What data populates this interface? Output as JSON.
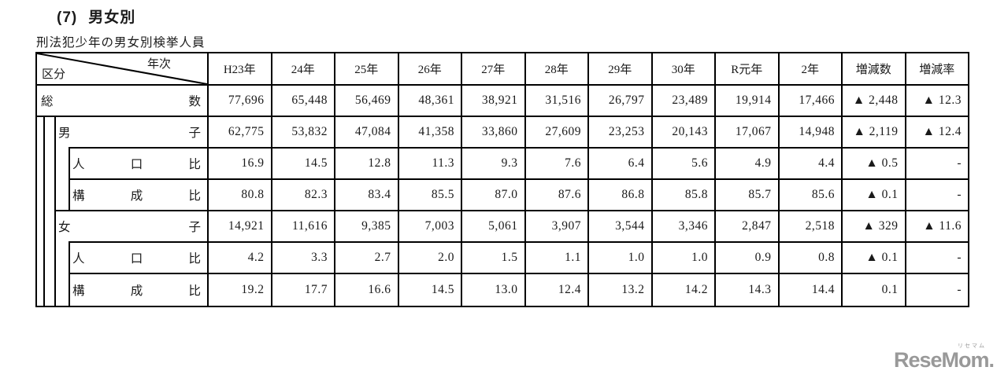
{
  "header": {
    "section_number": "(7)",
    "section_title": "男女別",
    "table_caption": "刑法犯少年の男女別検挙人員"
  },
  "table": {
    "corner": {
      "top_right": "年次",
      "bottom_left": "区分"
    },
    "columns": [
      "H23年",
      "24年",
      "25年",
      "26年",
      "27年",
      "28年",
      "29年",
      "30年",
      "R元年",
      "2年",
      "増減数",
      "増減率"
    ],
    "rows": [
      {
        "label": "総数",
        "values": [
          "77,696",
          "65,448",
          "56,469",
          "48,361",
          "38,921",
          "31,516",
          "26,797",
          "23,489",
          "19,914",
          "17,466",
          "▲ 2,448",
          "▲ 12.3"
        ]
      },
      {
        "label": "男子",
        "values": [
          "62,775",
          "53,832",
          "47,084",
          "41,358",
          "33,860",
          "27,609",
          "23,253",
          "20,143",
          "17,067",
          "14,948",
          "▲ 2,119",
          "▲ 12.4"
        ]
      },
      {
        "label": "人口比",
        "values": [
          "16.9",
          "14.5",
          "12.8",
          "11.3",
          "9.3",
          "7.6",
          "6.4",
          "5.6",
          "4.9",
          "4.4",
          "▲ 0.5",
          "-"
        ]
      },
      {
        "label": "構成比",
        "values": [
          "80.8",
          "82.3",
          "83.4",
          "85.5",
          "87.0",
          "87.6",
          "86.8",
          "85.8",
          "85.7",
          "85.6",
          "▲ 0.1",
          "-"
        ]
      },
      {
        "label": "女子",
        "values": [
          "14,921",
          "11,616",
          "9,385",
          "7,003",
          "5,061",
          "3,907",
          "3,544",
          "3,346",
          "2,847",
          "2,518",
          "▲ 329",
          "▲ 11.6"
        ]
      },
      {
        "label": "人口比",
        "values": [
          "4.2",
          "3.3",
          "2.7",
          "2.0",
          "1.5",
          "1.1",
          "1.0",
          "1.0",
          "0.9",
          "0.8",
          "▲ 0.1",
          "-"
        ]
      },
      {
        "label": "構成比",
        "values": [
          "19.2",
          "17.7",
          "16.6",
          "14.5",
          "13.0",
          "12.4",
          "13.2",
          "14.2",
          "14.3",
          "14.4",
          "0.1",
          "-"
        ]
      }
    ]
  },
  "logo": {
    "text": "ReseMom.",
    "ruby": "リセマム"
  },
  "colors": {
    "background": "#ffffff",
    "border": "#000000",
    "text": "#1a1a1a",
    "logo_gray": "#999999"
  }
}
